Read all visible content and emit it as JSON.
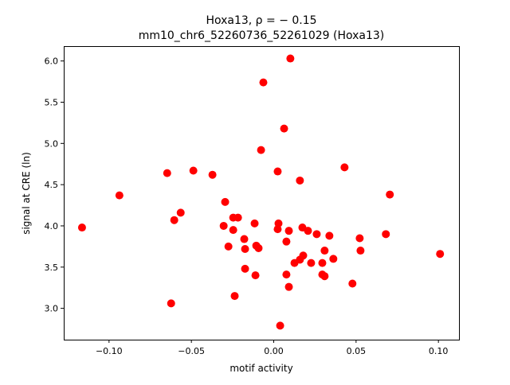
{
  "chart_data": {
    "type": "scatter",
    "title_line1": "Hoxa13, ρ = − 0.15",
    "title_line2": "mm10_chr6_52260736_52261029 (Hoxa13)",
    "xlabel": "motif activity",
    "ylabel": "signal at CRE (ln)",
    "xlim": [
      -0.1275,
      0.1125
    ],
    "ylim": [
      2.62,
      6.18
    ],
    "xticks": [
      -0.1,
      -0.05,
      0.0,
      0.05,
      0.1
    ],
    "xtick_labels": [
      "−0.10",
      "−0.05",
      "0.00",
      "0.05",
      "0.10"
    ],
    "yticks": [
      3.0,
      3.5,
      4.0,
      4.5,
      5.0,
      5.5,
      6.0
    ],
    "ytick_labels": [
      "3.0",
      "3.5",
      "4.0",
      "4.5",
      "5.0",
      "5.5",
      "6.0"
    ],
    "color": "#ff0000",
    "points": [
      [
        -0.1164,
        3.98
      ],
      [
        -0.0937,
        4.37
      ],
      [
        -0.0647,
        4.64
      ],
      [
        -0.0488,
        4.67
      ],
      [
        -0.0372,
        4.62
      ],
      [
        -0.0604,
        4.07
      ],
      [
        -0.0565,
        4.16
      ],
      [
        -0.0623,
        3.06
      ],
      [
        -0.0295,
        4.29
      ],
      [
        -0.0304,
        4.0
      ],
      [
        -0.0246,
        4.1
      ],
      [
        -0.0217,
        4.1
      ],
      [
        -0.0246,
        3.95
      ],
      [
        -0.0275,
        3.75
      ],
      [
        -0.0179,
        3.84
      ],
      [
        -0.0174,
        3.72
      ],
      [
        -0.0116,
        4.03
      ],
      [
        -0.0106,
        3.76
      ],
      [
        -0.0092,
        3.73
      ],
      [
        -0.0174,
        3.48
      ],
      [
        -0.0111,
        3.4
      ],
      [
        -0.0237,
        3.15
      ],
      [
        -0.0063,
        5.74
      ],
      [
        -0.0077,
        4.92
      ],
      [
        0.0024,
        4.66
      ],
      [
        0.0063,
        5.18
      ],
      [
        0.0101,
        6.03
      ],
      [
        0.0159,
        4.55
      ],
      [
        0.0029,
        4.03
      ],
      [
        0.0024,
        3.96
      ],
      [
        0.0092,
        3.94
      ],
      [
        0.0077,
        3.81
      ],
      [
        0.0174,
        3.98
      ],
      [
        0.0208,
        3.94
      ],
      [
        0.0261,
        3.9
      ],
      [
        0.0338,
        3.88
      ],
      [
        0.0179,
        3.64
      ],
      [
        0.0159,
        3.59
      ],
      [
        0.0126,
        3.55
      ],
      [
        0.0227,
        3.55
      ],
      [
        0.0295,
        3.55
      ],
      [
        0.0309,
        3.7
      ],
      [
        0.0362,
        3.6
      ],
      [
        0.0077,
        3.41
      ],
      [
        0.0092,
        3.26
      ],
      [
        0.0295,
        3.41
      ],
      [
        0.0309,
        3.39
      ],
      [
        0.0039,
        2.79
      ],
      [
        0.043,
        4.71
      ],
      [
        0.0705,
        4.38
      ],
      [
        0.0522,
        3.85
      ],
      [
        0.0527,
        3.7
      ],
      [
        0.0478,
        3.3
      ],
      [
        0.0681,
        3.9
      ],
      [
        0.101,
        3.66
      ]
    ]
  }
}
